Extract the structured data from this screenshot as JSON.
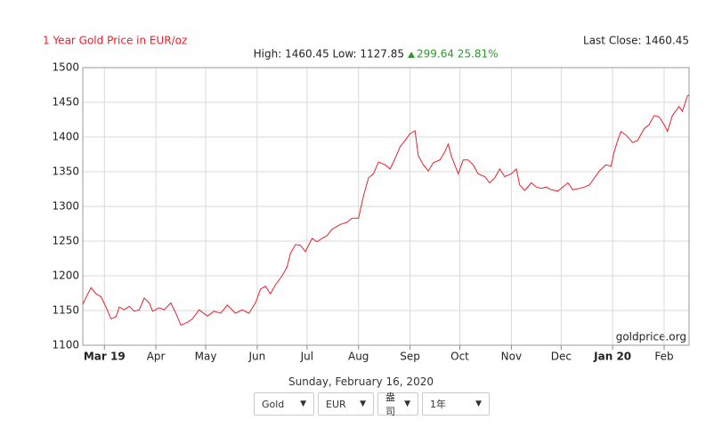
{
  "chart_data": {
    "type": "line",
    "title": "1 Year Gold Price in EUR/oz",
    "last_close": "Last Close: 1460.45",
    "stats": {
      "high_low": "High: 1460.45 Low: 1127.85",
      "change": "299.64 25.81%"
    },
    "watermark": "goldprice.org",
    "x": [
      0,
      3,
      5,
      8,
      11,
      14,
      17,
      20,
      22,
      25,
      28,
      31,
      34,
      37,
      40,
      42,
      46,
      49,
      53,
      56,
      59,
      63,
      66,
      70,
      75,
      79,
      83,
      87,
      92,
      96,
      100,
      104,
      107,
      110,
      113,
      116,
      120,
      123,
      125,
      128,
      131,
      134,
      138,
      141,
      144,
      147,
      150,
      155,
      159,
      162,
      166,
      169,
      172,
      175,
      178,
      182,
      185,
      188,
      191,
      194,
      197,
      200,
      202,
      205,
      208,
      211,
      215,
      218,
      220,
      222,
      226,
      229,
      232,
      235,
      238,
      242,
      245,
      248,
      251,
      254,
      258,
      261,
      263,
      266,
      270,
      273,
      276,
      279,
      282,
      286,
      289,
      292,
      295,
      299,
      302,
      305,
      308,
      311,
      315,
      318,
      320,
      322,
      324,
      327,
      331,
      334,
      338,
      341,
      344,
      347,
      350,
      352,
      355,
      359,
      361,
      364,
      365
    ],
    "values": [
      1159,
      1174,
      1183,
      1174,
      1170,
      1155,
      1138,
      1141,
      1155,
      1151,
      1156,
      1149,
      1151,
      1168,
      1161,
      1149,
      1154,
      1151,
      1161,
      1146,
      1129,
      1133,
      1138,
      1151,
      1142,
      1149,
      1146,
      1158,
      1146,
      1151,
      1146,
      1161,
      1181,
      1185,
      1174,
      1187,
      1200,
      1213,
      1232,
      1245,
      1244,
      1235,
      1254,
      1249,
      1254,
      1258,
      1267,
      1274,
      1277,
      1283,
      1283,
      1315,
      1341,
      1347,
      1364,
      1360,
      1354,
      1369,
      1386,
      1395,
      1405,
      1409,
      1373,
      1360,
      1351,
      1363,
      1367,
      1379,
      1390,
      1372,
      1347,
      1367,
      1367,
      1360,
      1347,
      1343,
      1334,
      1341,
      1354,
      1343,
      1347,
      1354,
      1331,
      1323,
      1334,
      1328,
      1326,
      1328,
      1324,
      1322,
      1328,
      1334,
      1324,
      1326,
      1328,
      1331,
      1341,
      1351,
      1360,
      1358,
      1379,
      1395,
      1408,
      1403,
      1392,
      1395,
      1412,
      1418,
      1431,
      1429,
      1418,
      1408,
      1431,
      1444,
      1437,
      1459,
      1460.45
    ],
    "color": "#e8202a",
    "xlim": [
      0,
      365
    ],
    "ylim": [
      1100,
      1500
    ],
    "xticks": [
      {
        "value": 13,
        "label": "Mar 19"
      },
      {
        "value": 44,
        "label": "Apr"
      },
      {
        "value": 74,
        "label": "May"
      },
      {
        "value": 105,
        "label": "Jun"
      },
      {
        "value": 135,
        "label": "Jul"
      },
      {
        "value": 166,
        "label": "Aug"
      },
      {
        "value": 197,
        "label": "Sep"
      },
      {
        "value": 227,
        "label": "Oct"
      },
      {
        "value": 258,
        "label": "Nov"
      },
      {
        "value": 288,
        "label": "Dec"
      },
      {
        "value": 319,
        "label": "Jan 20"
      },
      {
        "value": 350,
        "label": "Feb"
      }
    ],
    "yticks": [
      1100,
      1150,
      1200,
      1250,
      1300,
      1350,
      1400,
      1450,
      1500
    ],
    "grid": true
  },
  "footer": {
    "date": "Sunday, February 16, 2020",
    "controls": [
      "Gold",
      "EUR",
      "盎司",
      "1年"
    ]
  }
}
